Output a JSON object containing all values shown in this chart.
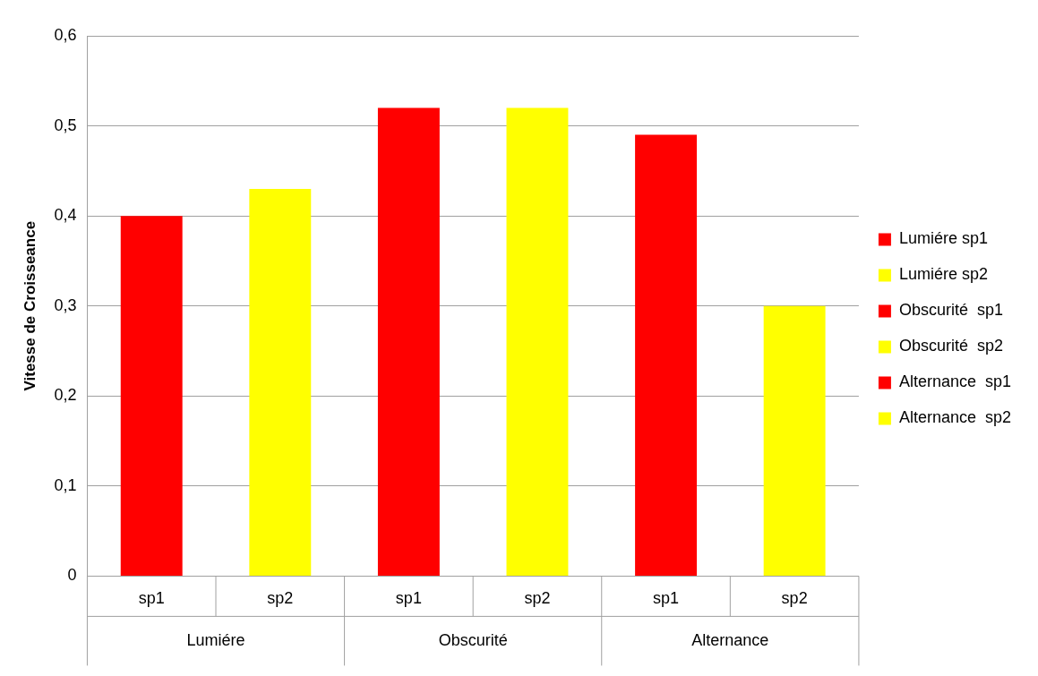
{
  "chart_data": {
    "type": "bar",
    "ylabel": "Vitesse de Croisseance",
    "categories": [
      "sp1",
      "sp2",
      "sp1",
      "sp2",
      "sp1",
      "sp2"
    ],
    "series": [
      {
        "name": "Lumiére sp1",
        "color": "#ff0000",
        "values": [
          0.4,
          null,
          null,
          null,
          null,
          null
        ]
      },
      {
        "name": "Lumiére sp2",
        "color": "#ffff00",
        "values": [
          null,
          0.43,
          null,
          null,
          null,
          null
        ]
      },
      {
        "name": "Obscurité  sp1",
        "color": "#ff0000",
        "values": [
          null,
          null,
          0.52,
          null,
          null,
          null
        ]
      },
      {
        "name": "Obscurité  sp2",
        "color": "#ffff00",
        "values": [
          null,
          null,
          null,
          0.52,
          null,
          null
        ]
      },
      {
        "name": "Alternance  sp1",
        "color": "#ff0000",
        "values": [
          null,
          null,
          null,
          null,
          0.49,
          null
        ]
      },
      {
        "name": "Alternance  sp2",
        "color": "#ffff00",
        "values": [
          null,
          null,
          null,
          null,
          null,
          0.3
        ]
      }
    ],
    "annotations": [
      "Lumiére",
      "Obscurité",
      "Alternance"
    ],
    "ylim": [
      0,
      0.6
    ],
    "yticks": [
      {
        "value": 0,
        "label": "0"
      },
      {
        "value": 0.1,
        "label": "0,1"
      },
      {
        "value": 0.2,
        "label": "0,2"
      },
      {
        "value": 0.3,
        "label": "0,3"
      },
      {
        "value": 0.4,
        "label": "0,4"
      },
      {
        "value": 0.5,
        "label": "0,5"
      },
      {
        "value": 0.6,
        "label": "0,6"
      }
    ],
    "grid": true,
    "legend": "right"
  }
}
